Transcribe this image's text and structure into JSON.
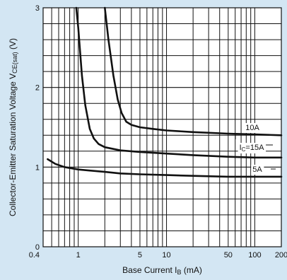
{
  "chart_data": {
    "type": "line",
    "xscale": "log",
    "xlim": [
      0.4,
      200
    ],
    "ylim": [
      0,
      3
    ],
    "grid": true,
    "background": "#d3e6f3",
    "plot_background": "#ffffff",
    "line_color": "#111111",
    "x_ticks": [
      "0.4",
      "1",
      "5",
      "10",
      "50",
      "100",
      "200"
    ],
    "y_ticks": [
      "0",
      "1",
      "2",
      "3"
    ],
    "xlabel_main": "Base Current  I",
    "xlabel_sub": "B",
    "xlabel_unit": " (mA)",
    "ylabel_main": "Collector-Emitter Saturation Voltage  V",
    "ylabel_sub": "CE(sat)",
    "ylabel_unit": " (V)",
    "series": [
      {
        "label_main": "I",
        "label_sub": "C",
        "label_rest": "=15A",
        "points": [
          [
            0.95,
            3.0
          ],
          [
            1.0,
            2.75
          ],
          [
            1.1,
            2.15
          ],
          [
            1.2,
            1.78
          ],
          [
            1.35,
            1.48
          ],
          [
            1.5,
            1.36
          ],
          [
            1.7,
            1.29
          ],
          [
            2.0,
            1.25
          ],
          [
            3.0,
            1.21
          ],
          [
            5.0,
            1.19
          ],
          [
            10,
            1.17
          ],
          [
            20,
            1.15
          ],
          [
            50,
            1.13
          ],
          [
            100,
            1.12
          ],
          [
            200,
            1.12
          ]
        ]
      },
      {
        "label_main": "",
        "label_sub": "",
        "label_rest": "10A",
        "points": [
          [
            2.0,
            3.0
          ],
          [
            2.2,
            2.6
          ],
          [
            2.5,
            2.15
          ],
          [
            2.8,
            1.85
          ],
          [
            3.1,
            1.68
          ],
          [
            3.5,
            1.57
          ],
          [
            4.0,
            1.53
          ],
          [
            5.0,
            1.5
          ],
          [
            7.0,
            1.48
          ],
          [
            10,
            1.46
          ],
          [
            20,
            1.44
          ],
          [
            50,
            1.42
          ],
          [
            100,
            1.41
          ],
          [
            200,
            1.4
          ]
        ]
      },
      {
        "label_main": "",
        "label_sub": "",
        "label_rest": "5A",
        "points": [
          [
            0.45,
            1.1
          ],
          [
            0.55,
            1.04
          ],
          [
            0.7,
            1.0
          ],
          [
            1.0,
            0.97
          ],
          [
            2.0,
            0.94
          ],
          [
            3.0,
            0.92
          ],
          [
            5.0,
            0.91
          ],
          [
            10,
            0.9
          ],
          [
            20,
            0.89
          ],
          [
            50,
            0.88
          ],
          [
            100,
            0.88
          ],
          [
            200,
            0.88
          ]
        ]
      }
    ]
  }
}
